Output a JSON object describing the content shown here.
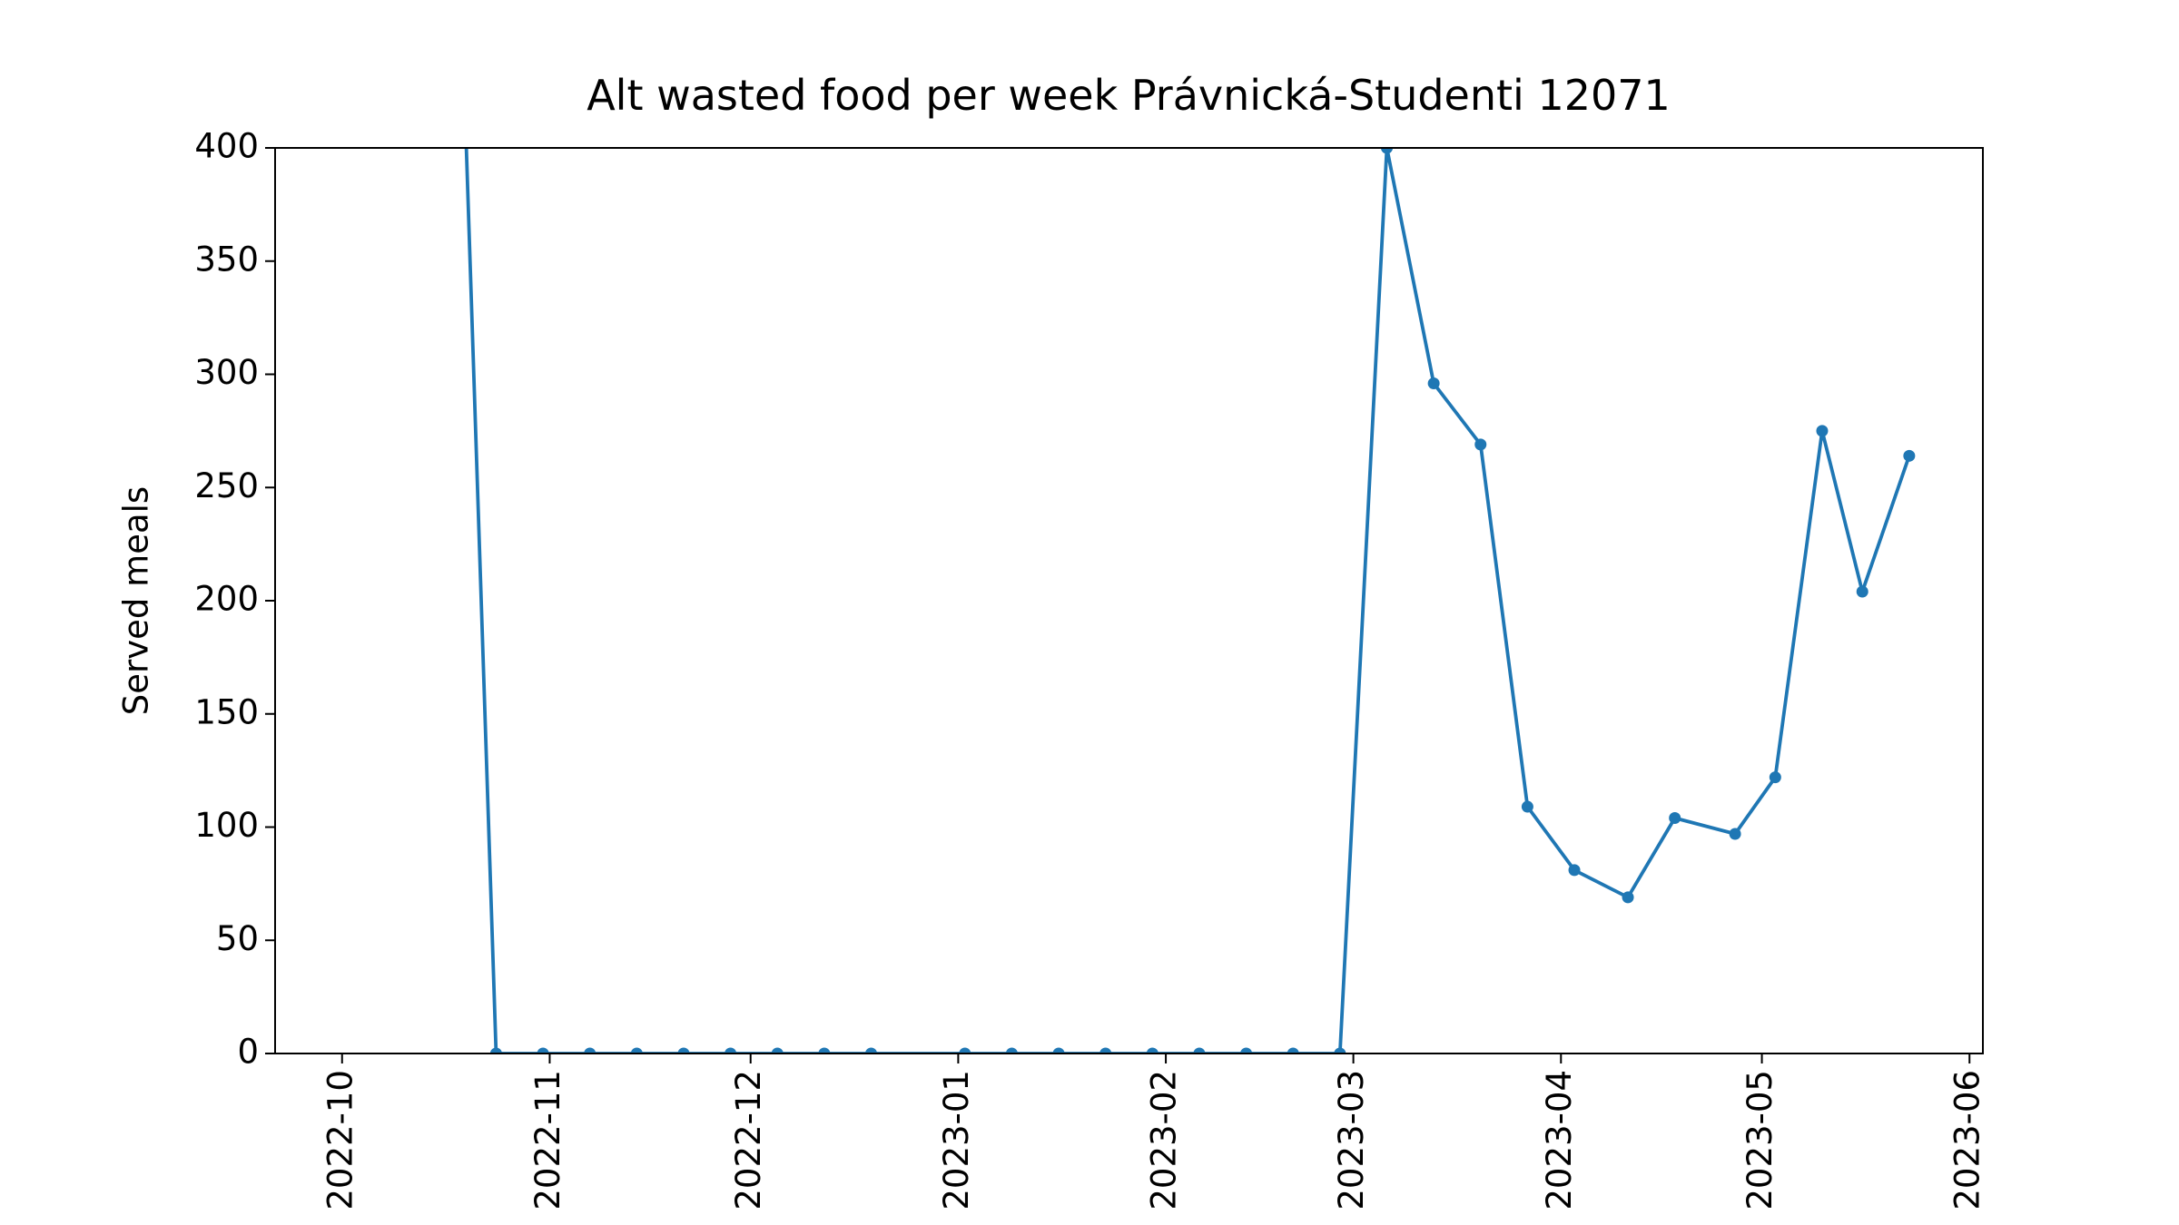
{
  "chart_data": {
    "type": "line",
    "title": "Alt wasted food per week Právnická-Studenti 12071",
    "y_label": "Served meals",
    "x": [
      "2022-10-17",
      "2022-10-24",
      "2022-10-31",
      "2022-11-07",
      "2022-11-14",
      "2022-11-21",
      "2022-11-28",
      "2022-12-05",
      "2022-12-12",
      "2022-12-19",
      "2023-01-02",
      "2023-01-09",
      "2023-01-16",
      "2023-01-23",
      "2023-01-30",
      "2023-02-06",
      "2023-02-13",
      "2023-02-20",
      "2023-02-27",
      "2023-03-06",
      "2023-03-13",
      "2023-03-20",
      "2023-03-27",
      "2023-04-03",
      "2023-04-11",
      "2023-04-18",
      "2023-04-27",
      "2023-05-03",
      "2023-05-10",
      "2023-05-16",
      "2023-05-23"
    ],
    "series": [
      {
        "color": "#1f77b4",
        "values": [
          630,
          0,
          0,
          0,
          0,
          0,
          0,
          0,
          0,
          0,
          0,
          0,
          0,
          0,
          0,
          0,
          0,
          0,
          0,
          400,
          296,
          269,
          109,
          81,
          69,
          104,
          97,
          122,
          275,
          204,
          264
        ]
      }
    ],
    "xlim": [
      "2022-09-21",
      "2023-06-03"
    ],
    "xticks": [
      "2022-10",
      "2022-11",
      "2022-12",
      "2023-01",
      "2023-02",
      "2023-03",
      "2023-04",
      "2023-05",
      "2023-06"
    ],
    "ylim": [
      0,
      400
    ],
    "yticks": [
      0,
      50,
      100,
      150,
      200,
      250,
      300,
      350,
      400
    ],
    "markers": true,
    "grid": false
  }
}
